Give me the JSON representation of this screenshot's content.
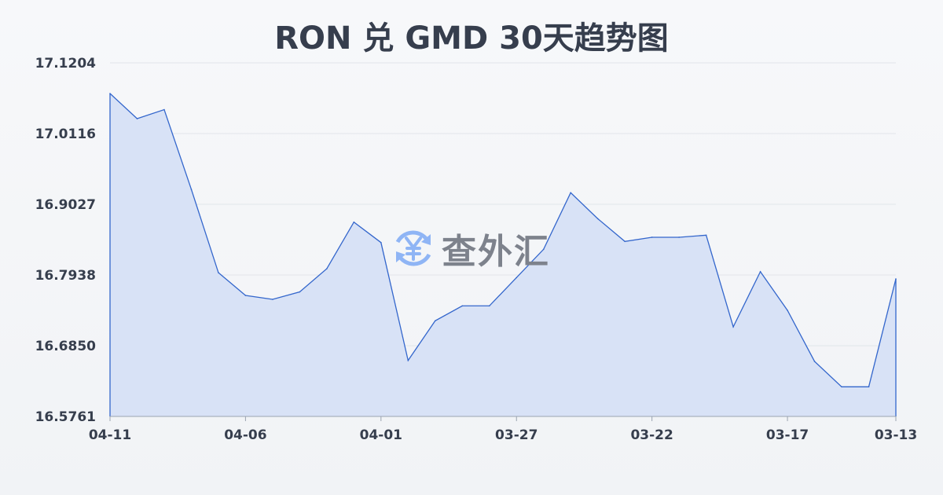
{
  "chart_data": {
    "type": "area",
    "title": "RON 兑 GMD 30天趋势图",
    "xlabel": "",
    "ylabel": "",
    "categories": [
      "04-11",
      "04-10",
      "04-09",
      "04-08",
      "04-07",
      "04-06",
      "04-05",
      "04-04",
      "04-03",
      "04-02",
      "04-01",
      "03-31",
      "03-30",
      "03-29",
      "03-28",
      "03-27",
      "03-26",
      "03-25",
      "03-24",
      "03-23",
      "03-22",
      "03-21",
      "03-20",
      "03-19",
      "03-18",
      "03-17",
      "03-16",
      "03-15",
      "03-14",
      "03-13"
    ],
    "values": [
      17.0732,
      17.0345,
      17.0484,
      16.9257,
      16.7974,
      16.7624,
      16.7563,
      16.7678,
      16.8035,
      16.8752,
      16.8438,
      16.6623,
      16.7233,
      16.7463,
      16.7463,
      16.7898,
      16.8334,
      16.9205,
      16.8805,
      16.8455,
      16.8519,
      16.8519,
      16.8551,
      16.714,
      16.799,
      16.7394,
      16.6608,
      16.6217,
      16.6217,
      16.7878
    ],
    "x_tick_labels": [
      "04-11",
      "04-06",
      "04-01",
      "03-27",
      "03-22",
      "03-17",
      "03-13"
    ],
    "y_tick_labels": [
      "17.1204",
      "17.0116",
      "16.9027",
      "16.7938",
      "16.6850",
      "16.5761"
    ],
    "ylim": [
      16.5761,
      17.1204
    ],
    "grid": true,
    "line_color": "#3366cc",
    "fill_color": "#d6e0f5"
  },
  "watermark": {
    "text": "查外汇",
    "icon": "yen-exchange-icon",
    "icon_color": "#8fb5f5"
  }
}
